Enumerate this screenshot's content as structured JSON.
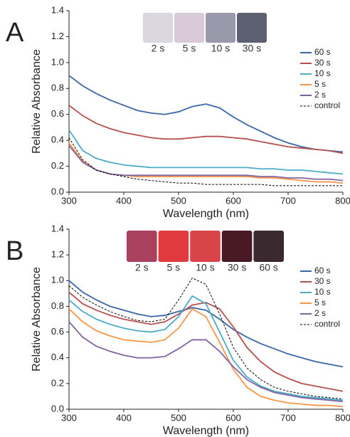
{
  "chart_data": [
    {
      "type": "line",
      "panel_label": "A",
      "xlabel": "Wavelength (nm)",
      "ylabel": "Relative Absorbance",
      "vial_labels": [
        "2 s",
        "5 s",
        "10 s",
        "30 s"
      ],
      "x": [
        300,
        325,
        350,
        375,
        400,
        425,
        450,
        475,
        500,
        525,
        550,
        575,
        600,
        625,
        650,
        675,
        700,
        725,
        750,
        775,
        800
      ],
      "xlim": [
        300,
        800
      ],
      "xticks": [
        300,
        400,
        500,
        600,
        700,
        800
      ],
      "ylim": [
        0,
        1.4
      ],
      "yticks": [
        {
          "value": 0,
          "label": "0.0"
        },
        {
          "value": 0.2,
          "label": "0.2"
        },
        {
          "value": 0.4,
          "label": "0.4"
        },
        {
          "value": 0.6,
          "label": "0.6"
        },
        {
          "value": 0.8,
          "label": "0.8"
        },
        {
          "value": 1,
          "label": "1.0"
        },
        {
          "value": 1.2,
          "label": "1.2"
        },
        {
          "value": 1.4,
          "label": "1.4"
        }
      ],
      "grid": false,
      "legend": "upper right",
      "series": [
        {
          "name": "60 s",
          "color": "#3a66a8",
          "values": [
            0.9,
            0.82,
            0.76,
            0.71,
            0.67,
            0.63,
            0.61,
            0.6,
            0.62,
            0.66,
            0.68,
            0.65,
            0.58,
            0.52,
            0.47,
            0.42,
            0.38,
            0.35,
            0.33,
            0.32,
            0.31
          ]
        },
        {
          "name": "30 s",
          "color": "#b5504e",
          "values": [
            0.67,
            0.59,
            0.53,
            0.49,
            0.46,
            0.44,
            0.42,
            0.41,
            0.41,
            0.42,
            0.43,
            0.43,
            0.42,
            0.41,
            0.39,
            0.37,
            0.35,
            0.34,
            0.33,
            0.32,
            0.3
          ]
        },
        {
          "name": "10 s",
          "color": "#4bacc6",
          "values": [
            0.48,
            0.32,
            0.26,
            0.23,
            0.21,
            0.2,
            0.19,
            0.19,
            0.19,
            0.19,
            0.19,
            0.19,
            0.19,
            0.19,
            0.18,
            0.18,
            0.17,
            0.17,
            0.16,
            0.15,
            0.14
          ]
        },
        {
          "name": "5 s",
          "color": "#f79646",
          "values": [
            0.38,
            0.24,
            0.17,
            0.14,
            0.13,
            0.12,
            0.12,
            0.12,
            0.12,
            0.12,
            0.12,
            0.12,
            0.12,
            0.12,
            0.11,
            0.11,
            0.1,
            0.09,
            0.08,
            0.08,
            0.07
          ]
        },
        {
          "name": "2 s",
          "color": "#8064a2",
          "values": [
            0.36,
            0.23,
            0.17,
            0.14,
            0.13,
            0.13,
            0.13,
            0.13,
            0.13,
            0.13,
            0.13,
            0.13,
            0.13,
            0.13,
            0.12,
            0.12,
            0.11,
            0.11,
            0.1,
            0.1,
            0.09
          ]
        },
        {
          "name": "control",
          "color": "#000000",
          "dashed": true,
          "values": [
            0.42,
            0.25,
            0.17,
            0.14,
            0.12,
            0.1,
            0.09,
            0.08,
            0.07,
            0.07,
            0.06,
            0.06,
            0.06,
            0.06,
            0.06,
            0.05,
            0.05,
            0.05,
            0.05,
            0.05,
            0.05
          ]
        }
      ]
    },
    {
      "type": "line",
      "panel_label": "B",
      "xlabel": "Wavelength (nm)",
      "ylabel": "Relative Absorbance",
      "vial_labels": [
        "2 s",
        "5 s",
        "10 s",
        "30 s",
        "60 s"
      ],
      "x": [
        300,
        325,
        350,
        375,
        400,
        425,
        450,
        475,
        500,
        525,
        550,
        575,
        600,
        625,
        650,
        675,
        700,
        725,
        750,
        775,
        800
      ],
      "xlim": [
        300,
        800
      ],
      "xticks": [
        300,
        400,
        500,
        600,
        700,
        800
      ],
      "ylim": [
        0,
        1.4
      ],
      "yticks": [
        {
          "value": 0,
          "label": "0.0"
        },
        {
          "value": 0.2,
          "label": "0.2"
        },
        {
          "value": 0.4,
          "label": "0.4"
        },
        {
          "value": 0.6,
          "label": "0.6"
        },
        {
          "value": 0.8,
          "label": "0.8"
        },
        {
          "value": 1,
          "label": "1.0"
        },
        {
          "value": 1.2,
          "label": "1.2"
        },
        {
          "value": 1.4,
          "label": "1.4"
        }
      ],
      "grid": false,
      "legend": "upper right",
      "series": [
        {
          "name": "60 s",
          "color": "#3a66a8",
          "values": [
            1.0,
            0.91,
            0.85,
            0.8,
            0.77,
            0.74,
            0.72,
            0.73,
            0.76,
            0.79,
            0.77,
            0.7,
            0.62,
            0.56,
            0.51,
            0.47,
            0.43,
            0.4,
            0.37,
            0.35,
            0.33
          ]
        },
        {
          "name": "30 s",
          "color": "#b5504e",
          "values": [
            0.91,
            0.82,
            0.77,
            0.73,
            0.7,
            0.68,
            0.66,
            0.68,
            0.74,
            0.81,
            0.83,
            0.78,
            0.64,
            0.48,
            0.37,
            0.29,
            0.24,
            0.2,
            0.18,
            0.16,
            0.14
          ]
        },
        {
          "name": "10 s",
          "color": "#4bacc6",
          "values": [
            0.85,
            0.76,
            0.7,
            0.66,
            0.63,
            0.61,
            0.6,
            0.62,
            0.72,
            0.88,
            0.82,
            0.6,
            0.38,
            0.25,
            0.18,
            0.14,
            0.12,
            0.1,
            0.09,
            0.08,
            0.07
          ]
        },
        {
          "name": "5 s",
          "color": "#f79646",
          "values": [
            0.78,
            0.68,
            0.61,
            0.57,
            0.54,
            0.53,
            0.52,
            0.54,
            0.63,
            0.78,
            0.72,
            0.52,
            0.31,
            0.17,
            0.1,
            0.07,
            0.05,
            0.04,
            0.03,
            0.03,
            0.02
          ]
        },
        {
          "name": "2 s",
          "color": "#8064a2",
          "values": [
            0.68,
            0.56,
            0.49,
            0.45,
            0.42,
            0.4,
            0.4,
            0.41,
            0.47,
            0.54,
            0.54,
            0.45,
            0.33,
            0.23,
            0.17,
            0.13,
            0.11,
            0.09,
            0.08,
            0.07,
            0.06
          ]
        },
        {
          "name": "control",
          "color": "#000000",
          "dashed": true,
          "values": [
            0.96,
            0.87,
            0.81,
            0.76,
            0.72,
            0.69,
            0.68,
            0.7,
            0.85,
            1.02,
            0.97,
            0.74,
            0.48,
            0.32,
            0.23,
            0.17,
            0.14,
            0.12,
            0.1,
            0.09,
            0.08
          ]
        }
      ]
    }
  ]
}
